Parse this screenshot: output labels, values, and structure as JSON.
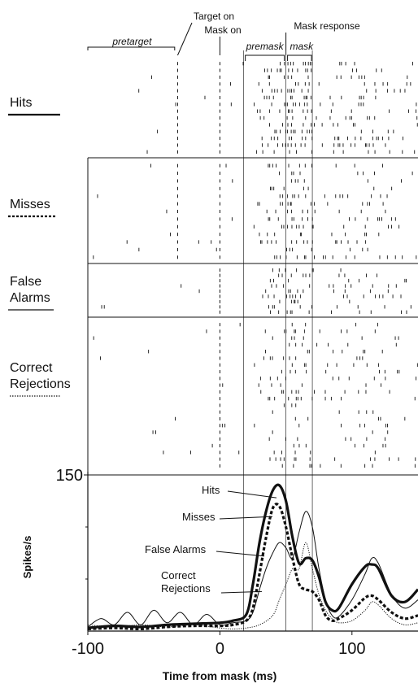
{
  "chart_data": {
    "type": "line",
    "events": {
      "target_on": "Target on",
      "mask_on": "Mask on",
      "mask_response": "Mask response",
      "target_on_ms": -32,
      "mask_on_ms": 0,
      "premask_start_ms": 18,
      "mask_response_ms": 50,
      "mask_end_ms": 70
    },
    "windows": [
      {
        "label": "pretarget",
        "start_ms": -100,
        "end_ms": -33
      },
      {
        "label": "premask",
        "start_ms": 18,
        "end_ms": 50
      },
      {
        "label": "mask",
        "start_ms": 50,
        "end_ms": 70
      }
    ],
    "rasters": [
      {
        "name": "Hits",
        "label_lines": [
          "Hits"
        ],
        "line_style": "solid-thick",
        "trials": 14
      },
      {
        "name": "Misses",
        "label_lines": [
          "Misses"
        ],
        "line_style": "dashed-thick",
        "trials": 13
      },
      {
        "name": "False Alarms",
        "label_lines": [
          "False",
          "Alarms"
        ],
        "line_style": "solid-thin",
        "trials": 9
      },
      {
        "name": "Correct Rejections",
        "label_lines": [
          "Correct",
          "Rejections"
        ],
        "line_style": "dotted-thin",
        "trials": 22
      }
    ],
    "xlabel": "Time from mask (ms)",
    "ylabel": "Spikes/s",
    "xlim": [
      -100,
      150
    ],
    "ylim": [
      0,
      150
    ],
    "xticks": [
      -100,
      0,
      100
    ],
    "yticks": [
      150
    ],
    "legend": "annotations",
    "series": [
      {
        "name": "Hits",
        "style": "solid-thick",
        "x": [
          -100,
          -80,
          -60,
          -40,
          -20,
          0,
          10,
          20,
          25,
          30,
          35,
          40,
          45,
          50,
          55,
          60,
          65,
          70,
          75,
          80,
          85,
          90,
          100,
          110,
          115,
          120,
          130,
          140,
          150
        ],
        "y": [
          3,
          5,
          4,
          6,
          7,
          8,
          10,
          16,
          45,
          85,
          115,
          135,
          140,
          125,
          90,
          65,
          70,
          68,
          52,
          28,
          20,
          22,
          45,
          62,
          64,
          60,
          34,
          28,
          40
        ]
      },
      {
        "name": "Misses",
        "style": "dashed-thick",
        "x": [
          -100,
          -80,
          -60,
          -40,
          -20,
          0,
          10,
          20,
          25,
          30,
          35,
          40,
          45,
          50,
          55,
          60,
          65,
          70,
          75,
          80,
          85,
          90,
          100,
          110,
          115,
          120,
          130,
          140,
          150
        ],
        "y": [
          2,
          3,
          2,
          4,
          5,
          5,
          6,
          10,
          22,
          55,
          90,
          118,
          120,
          100,
          70,
          45,
          40,
          38,
          30,
          15,
          10,
          12,
          20,
          32,
          34,
          30,
          18,
          12,
          15
        ]
      },
      {
        "name": "False Alarms",
        "style": "solid-thin",
        "x": [
          -100,
          -90,
          -80,
          -70,
          -60,
          -50,
          -40,
          -30,
          -20,
          -10,
          0,
          10,
          20,
          25,
          30,
          35,
          40,
          45,
          50,
          55,
          60,
          65,
          70,
          75,
          80,
          85,
          90,
          100,
          110,
          115,
          120,
          130,
          140,
          150
        ],
        "y": [
          4,
          12,
          6,
          18,
          6,
          20,
          8,
          18,
          6,
          16,
          6,
          8,
          10,
          18,
          40,
          60,
          75,
          85,
          80,
          70,
          95,
          115,
          100,
          60,
          30,
          15,
          14,
          30,
          55,
          70,
          65,
          35,
          22,
          30
        ]
      },
      {
        "name": "Correct Rejections",
        "style": "dotted-thin",
        "x": [
          -100,
          -80,
          -60,
          -40,
          -20,
          0,
          10,
          20,
          30,
          40,
          45,
          50,
          55,
          60,
          65,
          70,
          75,
          80,
          85,
          90,
          100,
          110,
          115,
          120,
          130,
          140,
          150
        ],
        "y": [
          6,
          4,
          6,
          4,
          6,
          3,
          2,
          3,
          6,
          15,
          30,
          45,
          60,
          60,
          85,
          60,
          35,
          20,
          12,
          8,
          10,
          20,
          28,
          25,
          12,
          6,
          8
        ]
      }
    ],
    "annotations": [
      {
        "label_lines": [
          "Hits"
        ],
        "series": "Hits"
      },
      {
        "label_lines": [
          "Misses"
        ],
        "series": "Misses"
      },
      {
        "label_lines": [
          "False Alarms"
        ],
        "series": "False Alarms"
      },
      {
        "label_lines": [
          "Correct",
          "Rejections"
        ],
        "series": "Correct Rejections"
      }
    ]
  }
}
